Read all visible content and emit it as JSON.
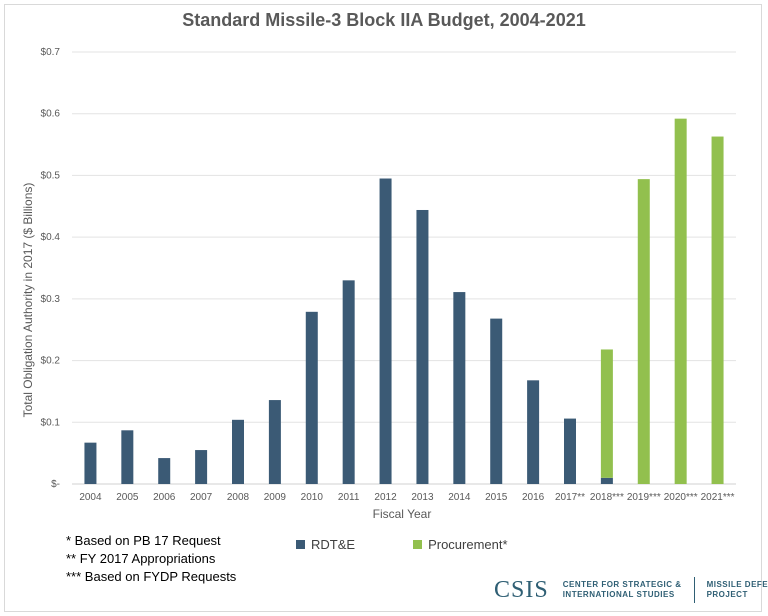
{
  "chart_data": {
    "type": "bar",
    "stacked": true,
    "title": "Standard Missile-3 Block IIA Budget, 2004-2021",
    "xlabel": "Fiscal Year",
    "ylabel": "Total Obligation Authority in 2017 ($ Billions)",
    "ylim": [
      0,
      0.7
    ],
    "yticks": [
      0,
      0.1,
      0.2,
      0.3,
      0.4,
      0.5,
      0.6,
      0.7
    ],
    "ytick_labels": [
      "$-",
      "$0.1",
      "$0.2",
      "$0.3",
      "$0.4",
      "$0.5",
      "$0.6",
      "$0.7"
    ],
    "grid": true,
    "categories": [
      "2004",
      "2005",
      "2006",
      "2007",
      "2008",
      "2009",
      "2010",
      "2011",
      "2012",
      "2013",
      "2014",
      "2015",
      "2016",
      "2017**",
      "2018***",
      "2019***",
      "2020***",
      "2021***"
    ],
    "series": [
      {
        "name": "RDT&E",
        "color": "#3b5a75",
        "values": [
          0.067,
          0.087,
          0.042,
          0.055,
          0.104,
          0.136,
          0.279,
          0.33,
          0.495,
          0.444,
          0.311,
          0.268,
          0.168,
          0.106,
          0.01,
          0,
          0,
          0
        ]
      },
      {
        "name": "Procurement*",
        "color": "#92c04e",
        "values": [
          0,
          0,
          0,
          0,
          0,
          0,
          0,
          0,
          0,
          0,
          0,
          0,
          0,
          0,
          0.208,
          0.494,
          0.592,
          0.563
        ]
      }
    ],
    "legend_position": "bottom"
  },
  "notes": [
    "* Based on PB 17 Request",
    "** FY 2017 Appropriations",
    "*** Based on FYDP Requests"
  ],
  "footer": {
    "logo": "CSIS",
    "org_line1": "CENTER FOR STRATEGIC &",
    "org_line2": "INTERNATIONAL STUDIES",
    "project_line1": "MISSILE DEFENSE",
    "project_line2": "PROJECT"
  }
}
